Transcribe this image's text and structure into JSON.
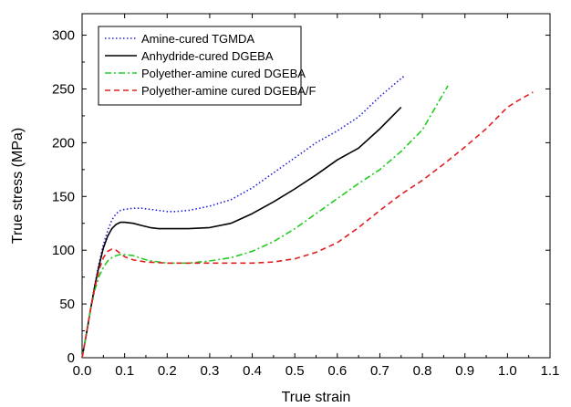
{
  "chart_data": {
    "type": "line",
    "title": "",
    "xlabel": "True strain",
    "ylabel": "True stress (MPa)",
    "xlim": [
      0.0,
      1.1
    ],
    "ylim": [
      0,
      320
    ],
    "xticks": [
      0.0,
      0.1,
      0.2,
      0.3,
      0.4,
      0.5,
      0.6,
      0.7,
      0.8,
      0.9,
      1.0,
      1.1
    ],
    "xtick_labels": [
      "0.0",
      "0.1",
      "0.2",
      "0.3",
      "0.4",
      "0.5",
      "0.6",
      "0.7",
      "0.8",
      "0.9",
      "1.0",
      "1.1"
    ],
    "yticks": [
      0,
      50,
      100,
      150,
      200,
      250,
      300
    ],
    "ytick_labels": [
      "0",
      "50",
      "100",
      "150",
      "200",
      "250",
      "300"
    ],
    "grid": false,
    "legend_position": "top-left",
    "series": [
      {
        "name": "Amine-cured TGMDA",
        "color": "#1f1fd6",
        "style": "dotted",
        "x": [
          0.0,
          0.01,
          0.02,
          0.03,
          0.04,
          0.05,
          0.06,
          0.07,
          0.08,
          0.09,
          0.1,
          0.12,
          0.14,
          0.16,
          0.18,
          0.2,
          0.22,
          0.25,
          0.3,
          0.35,
          0.4,
          0.45,
          0.5,
          0.55,
          0.6,
          0.65,
          0.7,
          0.73,
          0.76
        ],
        "y": [
          0,
          22,
          45,
          68,
          88,
          105,
          118,
          128,
          134,
          137,
          138,
          139,
          139,
          138,
          137,
          136,
          136,
          137,
          141,
          147,
          158,
          172,
          186,
          200,
          211,
          224,
          243,
          253,
          263
        ]
      },
      {
        "name": "Anhydride-cured DGEBA",
        "color": "#000000",
        "style": "solid",
        "x": [
          0.0,
          0.01,
          0.02,
          0.03,
          0.04,
          0.05,
          0.06,
          0.07,
          0.08,
          0.09,
          0.1,
          0.12,
          0.14,
          0.16,
          0.18,
          0.2,
          0.25,
          0.3,
          0.35,
          0.4,
          0.45,
          0.5,
          0.55,
          0.6,
          0.65,
          0.7,
          0.75
        ],
        "y": [
          0,
          22,
          45,
          67,
          86,
          102,
          113,
          120,
          124,
          126,
          126,
          125,
          123,
          121,
          120,
          120,
          120,
          121,
          125,
          134,
          145,
          157,
          170,
          184,
          195,
          213,
          233
        ]
      },
      {
        "name": "Polyether-amine cured DGEBA",
        "color": "#22cc22",
        "style": "dashdot",
        "x": [
          0.0,
          0.01,
          0.02,
          0.03,
          0.04,
          0.05,
          0.06,
          0.07,
          0.08,
          0.09,
          0.1,
          0.12,
          0.15,
          0.18,
          0.2,
          0.25,
          0.3,
          0.35,
          0.4,
          0.45,
          0.5,
          0.55,
          0.6,
          0.65,
          0.7,
          0.75,
          0.8,
          0.86
        ],
        "y": [
          0,
          22,
          45,
          63,
          76,
          84,
          90,
          93,
          95,
          96,
          96,
          95,
          91,
          89,
          88,
          88,
          90,
          93,
          99,
          108,
          120,
          134,
          148,
          162,
          175,
          192,
          212,
          253
        ]
      },
      {
        "name": "Polyether-amine cured DGEBA/F",
        "color": "#e02020",
        "style": "dashed",
        "x": [
          0.0,
          0.01,
          0.02,
          0.03,
          0.04,
          0.05,
          0.06,
          0.07,
          0.08,
          0.09,
          0.1,
          0.12,
          0.15,
          0.2,
          0.25,
          0.3,
          0.35,
          0.4,
          0.45,
          0.5,
          0.55,
          0.6,
          0.65,
          0.7,
          0.75,
          0.8,
          0.85,
          0.9,
          0.95,
          1.0,
          1.02,
          1.06
        ],
        "y": [
          0,
          22,
          45,
          65,
          82,
          93,
          99,
          101,
          100,
          97,
          94,
          91,
          89,
          88,
          88,
          88,
          88,
          88,
          89,
          92,
          98,
          107,
          121,
          137,
          152,
          165,
          180,
          196,
          213,
          233,
          238,
          247
        ]
      }
    ]
  }
}
